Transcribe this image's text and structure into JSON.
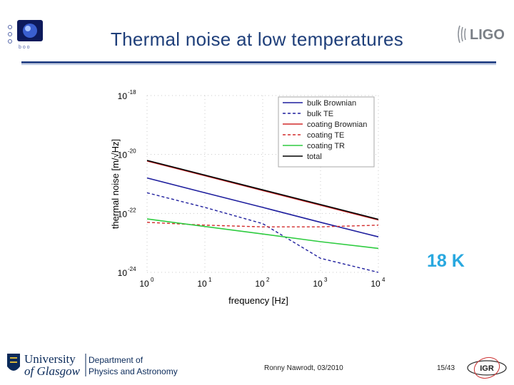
{
  "slide": {
    "title": "Thermal noise at low temperatures",
    "temperature_label": "18 K",
    "footer_author": "Ronny Nawrodt, 03/2010",
    "footer_page": "15/43",
    "university_line1": "University",
    "university_line2": "of Glasgow",
    "department_line1": "Department of",
    "department_line2": "Physics and Astronomy",
    "ligo_logo_text": "LIGO",
    "igr_logo_text": "IGR"
  },
  "colors": {
    "title": "#1f3f7a",
    "temperature": "#29a8df",
    "accent_rule": "#2e4a8a"
  },
  "chart_data": {
    "type": "line",
    "xlabel": "frequency [Hz]",
    "ylabel": "thermal noise [m/√Hz]",
    "x_scale": "log",
    "y_scale": "log",
    "xlim": [
      1,
      10000
    ],
    "ylim": [
      1e-24,
      1e-18
    ],
    "x_ticks": [
      {
        "base": "10",
        "exp": "0",
        "value": 1
      },
      {
        "base": "10",
        "exp": "1",
        "value": 10
      },
      {
        "base": "10",
        "exp": "2",
        "value": 100
      },
      {
        "base": "10",
        "exp": "3",
        "value": 1000
      },
      {
        "base": "10",
        "exp": "4",
        "value": 10000
      }
    ],
    "y_ticks": [
      {
        "base": "10",
        "exp": "-18",
        "value": 1e-18
      },
      {
        "base": "10",
        "exp": "-20",
        "value": 1e-20
      },
      {
        "base": "10",
        "exp": "-22",
        "value": 1e-22
      },
      {
        "base": "10",
        "exp": "-24",
        "value": 1e-24
      }
    ],
    "grid": true,
    "legend_position": "top-right",
    "x": [
      1,
      10,
      100,
      1000,
      10000
    ],
    "series": [
      {
        "name": "bulk Brownian",
        "color": "#1f1f9e",
        "dash": "solid",
        "values": [
          1.6e-21,
          5e-22,
          1.6e-22,
          5e-23,
          1.6e-23
        ]
      },
      {
        "name": "bulk TE",
        "color": "#1f1f9e",
        "dash": "dashed",
        "values": [
          5e-22,
          1.6e-22,
          4.5e-23,
          3e-24,
          1e-24
        ]
      },
      {
        "name": "coating Brownian",
        "color": "#d22b2b",
        "dash": "solid",
        "values": [
          6e-21,
          1.9e-21,
          6e-22,
          1.9e-22,
          6e-23
        ]
      },
      {
        "name": "coating TE",
        "color": "#d22b2b",
        "dash": "dashed",
        "values": [
          5e-23,
          4e-23,
          3.5e-23,
          3.5e-23,
          4e-23
        ]
      },
      {
        "name": "coating TR",
        "color": "#2ecc40",
        "dash": "solid",
        "values": [
          6.5e-23,
          3.6e-23,
          2e-23,
          1.1e-23,
          6.5e-24
        ]
      },
      {
        "name": "total",
        "color": "#000000",
        "dash": "solid",
        "values": [
          6.3e-21,
          2e-21,
          6.3e-22,
          2e-22,
          6.3e-23
        ]
      }
    ]
  }
}
